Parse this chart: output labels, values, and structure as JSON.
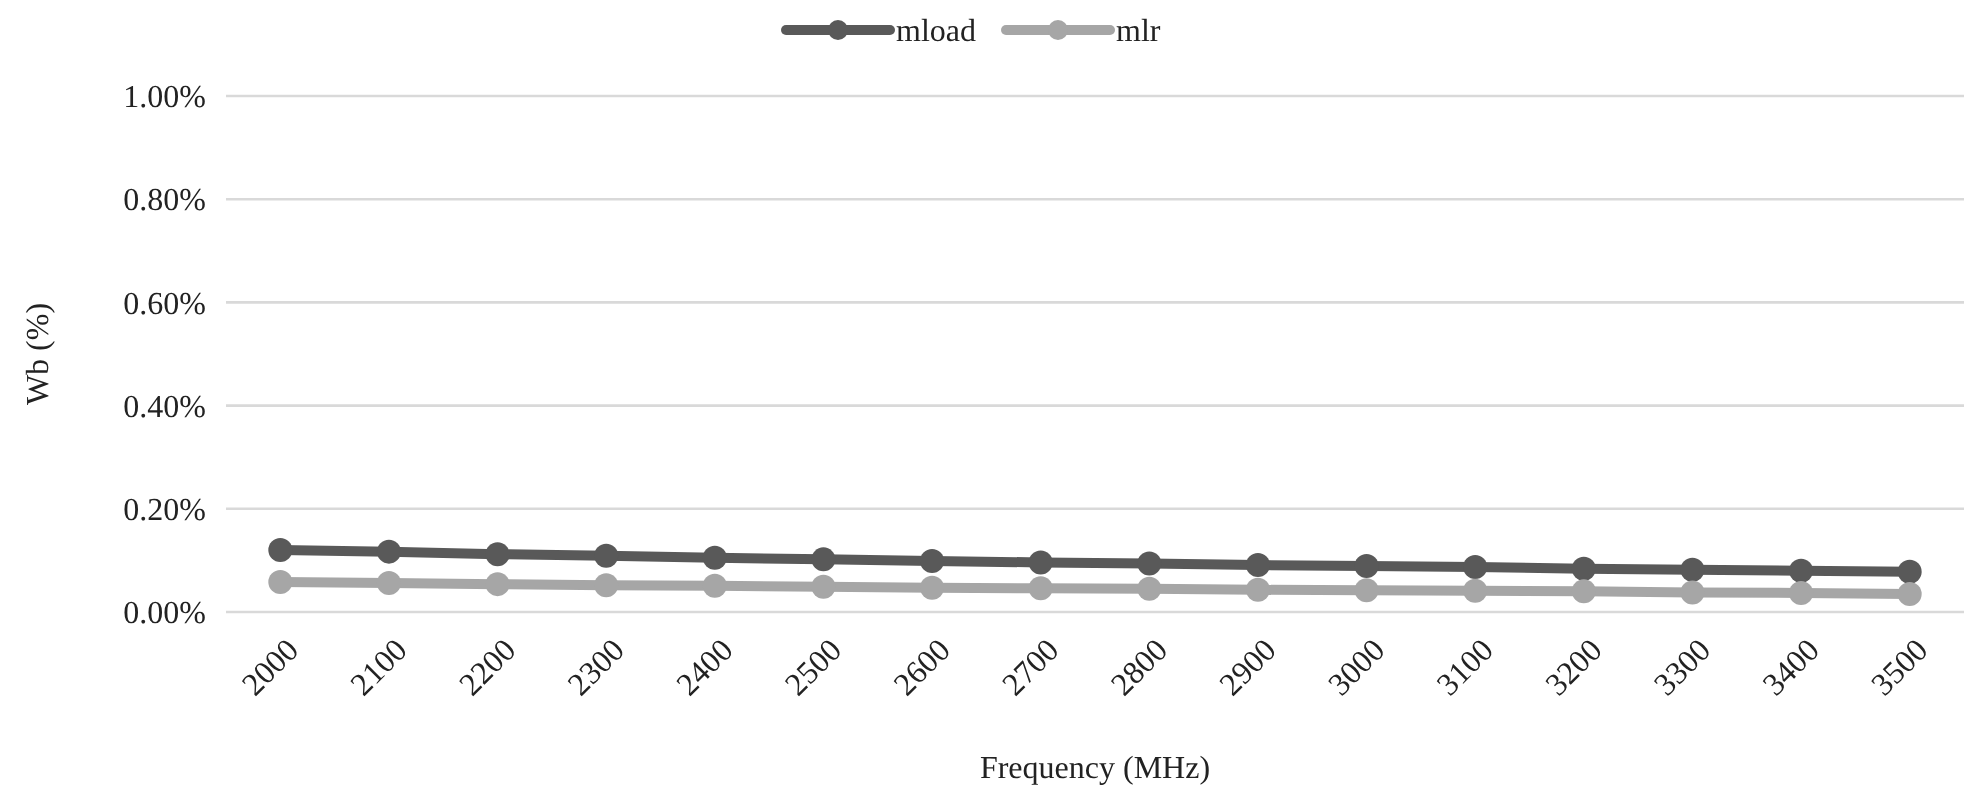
{
  "chart_data": {
    "type": "line",
    "xlabel": "Frequency (MHz)",
    "ylabel": "Wb (%)",
    "categories": [
      "2000",
      "2100",
      "2200",
      "2300",
      "2400",
      "2500",
      "2600",
      "2700",
      "2800",
      "2900",
      "3000",
      "3100",
      "3200",
      "3300",
      "3400",
      "3500"
    ],
    "series": [
      {
        "name": "mload",
        "color": "#595959",
        "values": [
          0.12,
          0.117,
          0.112,
          0.109,
          0.105,
          0.102,
          0.099,
          0.096,
          0.094,
          0.091,
          0.089,
          0.087,
          0.084,
          0.082,
          0.08,
          0.078
        ]
      },
      {
        "name": "mlr",
        "color": "#a6a6a6",
        "values": [
          0.058,
          0.056,
          0.054,
          0.052,
          0.051,
          0.049,
          0.047,
          0.046,
          0.045,
          0.043,
          0.042,
          0.041,
          0.04,
          0.038,
          0.037,
          0.035
        ]
      }
    ],
    "ylim": [
      0,
      1
    ],
    "yticks": [
      {
        "value": 0,
        "label": "0.00%"
      },
      {
        "value": 0.2,
        "label": "0.20%"
      },
      {
        "value": 0.4,
        "label": "0.40%"
      },
      {
        "value": 0.6,
        "label": "0.60%"
      },
      {
        "value": 0.8,
        "label": "0.80%"
      },
      {
        "value": 1,
        "label": "1.00%"
      }
    ],
    "grid": "y",
    "legend": "top",
    "marker": "circle",
    "line_style": "solid"
  }
}
